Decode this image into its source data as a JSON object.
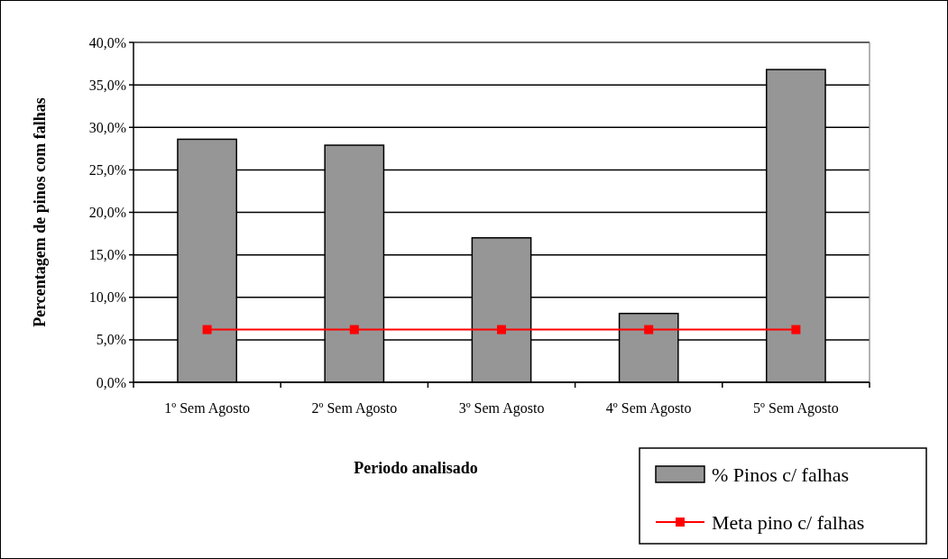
{
  "chart_data": {
    "type": "bar",
    "xlabel": "Periodo analisado",
    "ylabel": "Percentagem de pinos com falhas",
    "categories": [
      "1º Sem Agosto",
      "2º Sem Agosto",
      "3º Sem Agosto",
      "4º Sem Agosto",
      "5º Sem Agosto"
    ],
    "series": [
      {
        "name": "% Pinos c/ falhas",
        "color": "#969696",
        "values": [
          28.6,
          27.9,
          17.0,
          8.1,
          36.8
        ]
      },
      {
        "name": "Meta pino c/ falhas",
        "type": "line",
        "color": "#ff0000",
        "marker": "square",
        "values": [
          6.2,
          6.2,
          6.2,
          6.2,
          6.2
        ]
      }
    ],
    "ylim": [
      0,
      40
    ],
    "yticks": [
      {
        "value": 0,
        "label": "0,0%"
      },
      {
        "value": 5,
        "label": "5,0%"
      },
      {
        "value": 10,
        "label": "10,0%"
      },
      {
        "value": 15,
        "label": "15,0%"
      },
      {
        "value": 20,
        "label": "20,0%"
      },
      {
        "value": 25,
        "label": "25,0%"
      },
      {
        "value": 30,
        "label": "30,0%"
      },
      {
        "value": 35,
        "label": "35,0%"
      },
      {
        "value": 40,
        "label": "40,0%"
      }
    ],
    "grid": "y",
    "legend": "bottom right"
  }
}
